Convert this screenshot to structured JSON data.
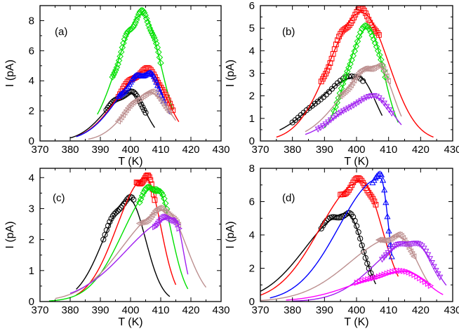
{
  "chart_data": [
    {
      "type": "line",
      "panel_label": "(a)",
      "xlabel": "T (K)",
      "ylabel": "I (pA)",
      "xlim": [
        370,
        430
      ],
      "ylim": [
        0,
        9
      ],
      "xticks": [
        "370",
        "380",
        "390",
        "400",
        "410",
        "420",
        "430"
      ],
      "yticks": [
        "0",
        "2",
        "4",
        "6",
        "8"
      ],
      "series": [
        {
          "name": "black",
          "color": "#000000",
          "marker": "circle",
          "fit": {
            "peak_T": 400,
            "peak_I": 3.2,
            "w_lo": 8.5,
            "w_hi": 5.0,
            "range": [
              380,
              408
            ]
          },
          "points": {
            "range": [
              392,
              405
            ],
            "n": 28
          }
        },
        {
          "name": "green",
          "color": "#00e000",
          "marker": "diamond",
          "fit": {
            "peak_T": 404,
            "peak_I": 8.4,
            "w_lo": 8.5,
            "w_hi": 6.0,
            "range": [
              389,
              414
            ]
          },
          "points": {
            "range": [
              394,
              410
            ],
            "n": 45
          }
        },
        {
          "name": "red",
          "color": "#ff0000",
          "marker": "square",
          "fit": {
            "peak_T": 405.5,
            "peak_I": 4.7,
            "w_lo": 10.0,
            "w_hi": 6.5,
            "range": [
              382,
              416
            ]
          },
          "points": {
            "range": [
              396,
              414
            ],
            "n": 38
          }
        },
        {
          "name": "blue",
          "color": "#0000ff",
          "marker": "triangle-up",
          "fit": {
            "peak_T": 405.5,
            "peak_I": 4.5,
            "w_lo": 10.0,
            "w_hi": 5.5,
            "range": [
              382,
              413
            ]
          },
          "points": {
            "range": [
              396,
              411
            ],
            "n": 38
          }
        },
        {
          "name": "rosy-brown",
          "color": "#bc8f8f",
          "marker": "triangle-left",
          "fit": {
            "peak_T": 406.5,
            "peak_I": 3.2,
            "w_lo": 8.0,
            "w_hi": 6.5,
            "range": [
              386,
              415
            ]
          },
          "points": {
            "range": [
              396,
              413
            ],
            "n": 32
          }
        }
      ]
    },
    {
      "type": "line",
      "panel_label": "(b)",
      "xlabel": "T (K)",
      "ylabel": "I (pA)",
      "xlim": [
        370,
        430
      ],
      "ylim": [
        0,
        6
      ],
      "xticks": [
        "370",
        "380",
        "390",
        "400",
        "410",
        "420",
        "430"
      ],
      "yticks": [
        "0",
        "1",
        "2",
        "3",
        "4",
        "5",
        "6"
      ],
      "series": [
        {
          "name": "black",
          "color": "#000000",
          "marker": "circle",
          "fit": {
            "peak_T": 400.5,
            "peak_I": 2.85,
            "w_lo": 13.0,
            "w_hi": 5.5,
            "range": [
              376,
              408
            ]
          },
          "points": {
            "range": [
              380,
              402
            ],
            "n": 26
          }
        },
        {
          "name": "red",
          "color": "#ff0000",
          "marker": "square",
          "fit": {
            "peak_T": 401.5,
            "peak_I": 5.7,
            "w_lo": 10.0,
            "w_hi": 8.5,
            "range": [
              375,
              424
            ]
          },
          "points": {
            "range": [
              389,
              407
            ],
            "n": 40
          }
        },
        {
          "name": "green",
          "color": "#00e000",
          "marker": "diamond",
          "fit": {
            "peak_T": 403.5,
            "peak_I": 5.0,
            "w_lo": 6.5,
            "w_hi": 5.0,
            "range": [
              390,
              413
            ]
          },
          "points": {
            "range": [
              393,
              409
            ],
            "n": 36
          }
        },
        {
          "name": "rosy-brown",
          "color": "#bc8f8f",
          "marker": "triangle-left",
          "fit": {
            "peak_T": 406.5,
            "peak_I": 3.35,
            "w_lo": 11.0,
            "w_hi": 5.0,
            "range": [
              384,
              414
            ]
          },
          "points": {
            "range": [
              395,
              410
            ],
            "n": 32
          }
        },
        {
          "name": "purple",
          "color": "#a020f0",
          "marker": "triangle-down",
          "fit": {
            "peak_T": 405.5,
            "peak_I": 1.95,
            "w_lo": 11.0,
            "w_hi": 6.0,
            "range": [
              384,
              414
            ]
          },
          "points": {
            "range": [
              388,
              411
            ],
            "n": 30
          }
        }
      ]
    },
    {
      "type": "line",
      "panel_label": "(c)",
      "xlabel": "T (K)",
      "ylabel": "I (pA)",
      "xlim": [
        370,
        430
      ],
      "ylim": [
        0,
        4.3
      ],
      "xticks": [
        "370",
        "380",
        "390",
        "400",
        "410",
        "420",
        "430"
      ],
      "yticks": [
        "0",
        "1",
        "2",
        "3",
        "4"
      ],
      "series": [
        {
          "name": "black",
          "color": "#000000",
          "marker": "circle",
          "fit": {
            "peak_T": 399.5,
            "peak_I": 3.3,
            "w_lo": 8.5,
            "w_hi": 5.5,
            "range": [
              382,
              413
            ]
          },
          "points": {
            "range": [
              391,
              401
            ],
            "n": 20
          }
        },
        {
          "name": "red",
          "color": "#ff0000",
          "marker": "square",
          "fit": {
            "peak_T": 405,
            "peak_I": 4.0,
            "w_lo": 9.5,
            "w_hi": 5.0,
            "range": [
              382,
              415
            ]
          },
          "points": {
            "range": [
              402,
              408
            ],
            "n": 18
          }
        },
        {
          "name": "green",
          "color": "#00e000",
          "marker": "diamond",
          "fit": {
            "peak_T": 408.5,
            "peak_I": 3.7,
            "w_lo": 11.0,
            "w_hi": 5.0,
            "range": [
              373,
              419
            ]
          },
          "points": {
            "range": [
              403,
              412
            ],
            "n": 22
          }
        },
        {
          "name": "rosy-brown",
          "color": "#bc8f8f",
          "marker": "triangle-left",
          "fit": {
            "peak_T": 411.5,
            "peak_I": 2.95,
            "w_lo": 14.0,
            "w_hi": 7.0,
            "range": [
              375,
              425
            ]
          },
          "points": {
            "range": [
              403,
              416
            ],
            "n": 28
          }
        },
        {
          "name": "purple",
          "color": "#a020f0",
          "marker": "triangle-right",
          "fit": {
            "peak_T": 414.5,
            "peak_I": 2.7,
            "w_lo": 16.0,
            "w_hi": 3.0,
            "range": [
              380,
              419
            ]
          },
          "points": {
            "range": [
              408,
              416
            ],
            "n": 18
          }
        }
      ]
    },
    {
      "type": "line",
      "panel_label": "(d)",
      "xlabel": "T (K)",
      "ylabel": "I (pA)",
      "xlim": [
        370,
        430
      ],
      "ylim": [
        0,
        8
      ],
      "xticks": [
        "370",
        "380",
        "390",
        "400",
        "410",
        "420",
        "430"
      ],
      "yticks": [
        "0",
        "2",
        "4",
        "6",
        "8"
      ],
      "series": [
        {
          "name": "black",
          "color": "#000000",
          "marker": "circle",
          "fit": {
            "peak_T": 397,
            "peak_I": 5.3,
            "w_lo": 13.0,
            "w_hi": 5.0,
            "range": [
              370,
              406
            ]
          },
          "points": {
            "range": [
              389,
              405
            ],
            "n": 30
          }
        },
        {
          "name": "red",
          "color": "#ff0000",
          "marker": "square",
          "fit": {
            "peak_T": 401.5,
            "peak_I": 7.2,
            "w_lo": 13.0,
            "w_hi": 6.5,
            "range": [
              370,
              413
            ]
          },
          "points": {
            "range": [
              395,
              406
            ],
            "n": 26
          }
        },
        {
          "name": "blue",
          "color": "#0000ff",
          "marker": "triangle-up",
          "fit": {
            "peak_T": 407.5,
            "peak_I": 7.4,
            "w_lo": 13.0,
            "w_hi": 2.5,
            "range": [
              373,
              411
            ]
          },
          "points": {
            "range": [
              405,
              411
            ],
            "n": 14
          }
        },
        {
          "name": "rosy-brown",
          "color": "#bc8f8f",
          "marker": "triangle-left",
          "fit": {
            "peak_T": 413,
            "peak_I": 3.9,
            "w_lo": 15.0,
            "w_hi": 6.0,
            "range": [
              370,
              423
            ]
          },
          "points": {
            "range": [
              407,
              418
            ],
            "n": 24
          }
        },
        {
          "name": "purple",
          "color": "#a020f0",
          "marker": "triangle-down",
          "fit": {
            "peak_T": 417.5,
            "peak_I": 3.6,
            "w_lo": 12.0,
            "w_hi": 6.5,
            "range": [
              380,
              428
            ]
          },
          "points": {
            "range": [
              408,
              426
            ],
            "n": 30
          }
        },
        {
          "name": "magenta",
          "color": "#ff00ff",
          "marker": "triangle-right",
          "fit": {
            "peak_T": 415,
            "peak_I": 1.8,
            "w_lo": 15.0,
            "w_hi": 7.0,
            "range": [
              378,
              427
            ]
          },
          "points": {
            "range": [
              400,
              423
            ],
            "n": 28
          }
        }
      ]
    }
  ]
}
